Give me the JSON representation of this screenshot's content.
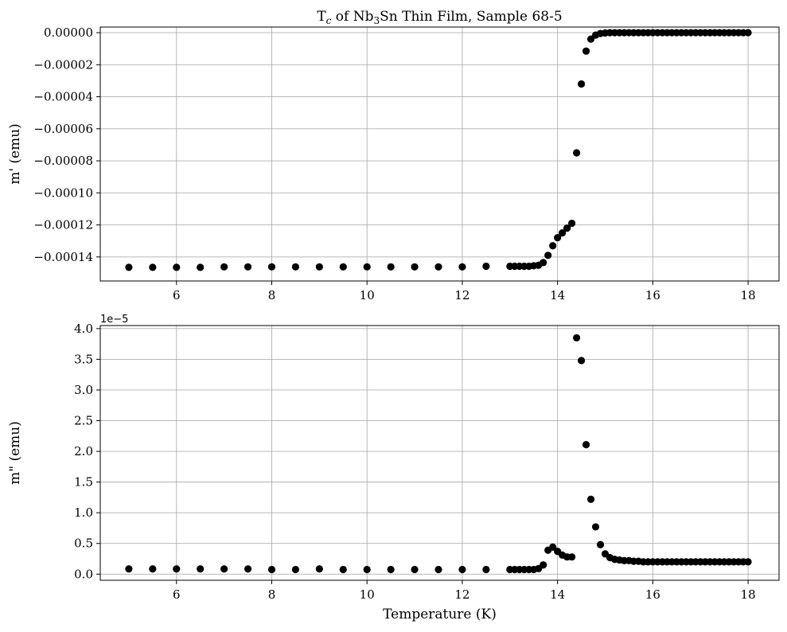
{
  "chart_data": [
    {
      "type": "scatter",
      "title_prefix": "T",
      "title_sub": "c",
      "title_mid": " of Nb",
      "title_sub2": "3",
      "title_suffix": "Sn Thin Film, Sample 68-5",
      "xlabel": "",
      "ylabel": "m' (emu)",
      "xlim": [
        4.4,
        18.65
      ],
      "ylim": [
        -0.000155,
        3.5e-06
      ],
      "xticks": [
        6,
        8,
        10,
        12,
        14,
        16,
        18
      ],
      "xtick_labels": [
        "6",
        "8",
        "10",
        "12",
        "14",
        "16",
        "18"
      ],
      "yticks": [
        0,
        -2e-05,
        -4e-05,
        -6e-05,
        -8e-05,
        -0.0001,
        -0.00012,
        -0.00014
      ],
      "ytick_labels": [
        "0.00000",
        "−0.00002",
        "−0.00004",
        "−0.00006",
        "−0.00008",
        "−0.00010",
        "−0.00012",
        "−0.00014"
      ],
      "grid": true,
      "marker_color": "#000000",
      "series": [
        {
          "x": [
            5,
            5.5,
            6,
            6.5,
            7,
            7.5,
            8,
            8.5,
            9,
            9.5,
            10,
            10.5,
            11,
            11.5,
            12,
            12.5,
            13,
            13.1,
            13.2,
            13.3,
            13.4,
            13.5,
            13.6,
            13.7,
            13.8,
            13.9,
            14,
            14.1,
            14.2,
            14.3,
            14.4,
            14.5,
            14.6,
            14.7,
            14.8,
            14.9,
            15,
            15.1,
            15.2,
            15.3,
            15.4,
            15.5,
            15.6,
            15.7,
            15.8,
            15.9,
            16,
            16.1,
            16.2,
            16.3,
            16.4,
            16.5,
            16.6,
            16.7,
            16.8,
            16.9,
            17,
            17.1,
            17.2,
            17.3,
            17.4,
            17.5,
            17.6,
            17.7,
            17.8,
            17.9,
            18
          ],
          "y": [
            -0.0001465,
            -0.0001465,
            -0.0001465,
            -0.0001465,
            -0.0001462,
            -0.0001462,
            -0.0001462,
            -0.0001462,
            -0.0001462,
            -0.0001462,
            -0.0001462,
            -0.0001462,
            -0.0001462,
            -0.0001462,
            -0.0001462,
            -0.0001458,
            -0.0001458,
            -0.0001458,
            -0.0001458,
            -0.0001458,
            -0.0001458,
            -0.0001455,
            -0.0001452,
            -0.0001435,
            -0.000139,
            -0.000133,
            -0.000128,
            -0.000125,
            -0.000122,
            -0.000119,
            -7.5e-05,
            -3.2e-05,
            -1.15e-05,
            -4e-06,
            -1.5e-06,
            -5e-07,
            -2e-07,
            0,
            0,
            0,
            0,
            0,
            0,
            0,
            0,
            0,
            0,
            0,
            0,
            0,
            0,
            0,
            0,
            0,
            0,
            0,
            0,
            0,
            0,
            0,
            0,
            0,
            0,
            0,
            0,
            0,
            0
          ]
        }
      ]
    },
    {
      "type": "scatter",
      "title": "",
      "xlabel": "Temperature (K)",
      "ylabel": "m\" (emu)",
      "offset_label": "1e−5",
      "xlim": [
        4.4,
        18.65
      ],
      "ylim": [
        -1e-06,
        4.05e-05
      ],
      "xticks": [
        6,
        8,
        10,
        12,
        14,
        16,
        18
      ],
      "xtick_labels": [
        "6",
        "8",
        "10",
        "12",
        "14",
        "16",
        "18"
      ],
      "yticks": [
        0,
        5e-06,
        1e-05,
        1.5e-05,
        2e-05,
        2.5e-05,
        3e-05,
        3.5e-05,
        4e-05
      ],
      "ytick_labels": [
        "0.0",
        "0.5",
        "1.0",
        "1.5",
        "2.0",
        "2.5",
        "3.0",
        "3.5",
        "4.0"
      ],
      "grid": true,
      "marker_color": "#000000",
      "series": [
        {
          "x": [
            5,
            5.5,
            6,
            6.5,
            7,
            7.5,
            8,
            8.5,
            9,
            9.5,
            10,
            10.5,
            11,
            11.5,
            12,
            12.5,
            13,
            13.1,
            13.2,
            13.3,
            13.4,
            13.5,
            13.6,
            13.7,
            13.8,
            13.9,
            14,
            14.1,
            14.2,
            14.3,
            14.4,
            14.5,
            14.6,
            14.7,
            14.8,
            14.9,
            15,
            15.1,
            15.2,
            15.3,
            15.4,
            15.5,
            15.6,
            15.7,
            15.8,
            15.9,
            16,
            16.1,
            16.2,
            16.3,
            16.4,
            16.5,
            16.6,
            16.7,
            16.8,
            16.9,
            17,
            17.1,
            17.2,
            17.3,
            17.4,
            17.5,
            17.6,
            17.7,
            17.8,
            17.9,
            18
          ],
          "y": [
            8.5e-07,
            8.5e-07,
            8.5e-07,
            8.5e-07,
            8.5e-07,
            8.5e-07,
            7.5e-07,
            7.5e-07,
            8.5e-07,
            7.5e-07,
            7.5e-07,
            7.5e-07,
            7.5e-07,
            7.5e-07,
            7.5e-07,
            7.5e-07,
            7.5e-07,
            7.5e-07,
            7.5e-07,
            7.5e-07,
            7.5e-07,
            7.5e-07,
            9e-07,
            1.5e-06,
            3.9e-06,
            4.4e-06,
            3.7e-06,
            3.1e-06,
            2.8e-06,
            2.8e-06,
            3.85e-05,
            3.48e-05,
            2.11e-05,
            1.22e-05,
            7.7e-06,
            4.8e-06,
            3.3e-06,
            2.7e-06,
            2.4e-06,
            2.3e-06,
            2.2e-06,
            2.2e-06,
            2.1e-06,
            2.1e-06,
            2e-06,
            2e-06,
            2e-06,
            2e-06,
            2e-06,
            2e-06,
            2e-06,
            2e-06,
            2e-06,
            2e-06,
            2e-06,
            2e-06,
            2e-06,
            2e-06,
            2e-06,
            2e-06,
            2e-06,
            2e-06,
            2e-06,
            2e-06,
            2e-06,
            2e-06,
            2e-06
          ]
        }
      ]
    }
  ]
}
